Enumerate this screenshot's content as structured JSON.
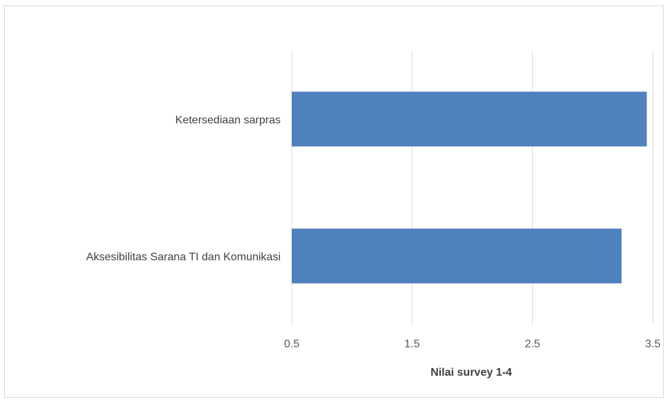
{
  "chart_data": {
    "type": "bar",
    "orientation": "horizontal",
    "categories": [
      "Ketersediaan sarpras",
      "Aksesibilitas Sarana TI dan Komunikasi"
    ],
    "values": [
      3.45,
      3.24
    ],
    "xlabel": "Nilai survey 1-4",
    "ylabel": "",
    "xlim": [
      0.5,
      3.5
    ],
    "xticks": [
      "0.5",
      "1.5",
      "2.5",
      "3.5"
    ],
    "grid": "vertical",
    "legend": "none",
    "bar_color": "#4f81bd"
  }
}
